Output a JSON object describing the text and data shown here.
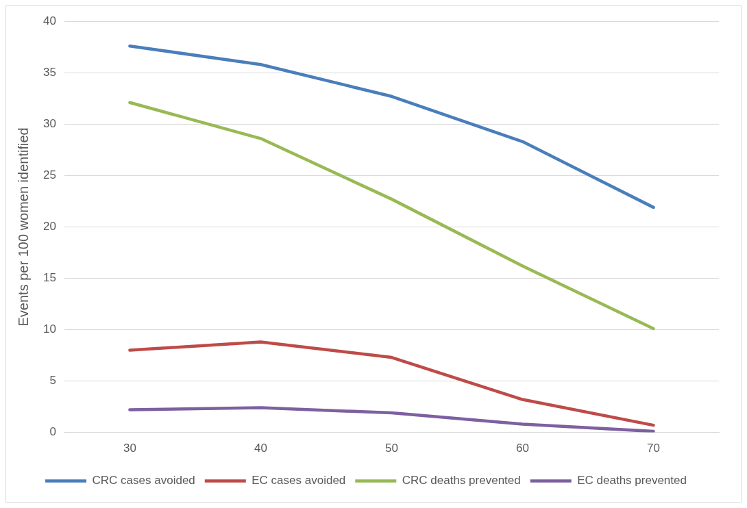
{
  "chart_data": {
    "type": "line",
    "ylabel": "Events per 100 women identified",
    "categories": [
      "30",
      "40",
      "50",
      "60",
      "70"
    ],
    "series": [
      {
        "name": "CRC cases avoided",
        "color": "#4a7ebb",
        "values": [
          37.6,
          35.8,
          32.7,
          28.3,
          21.9
        ]
      },
      {
        "name": "EC cases avoided",
        "color": "#be4b48",
        "values": [
          8.0,
          8.8,
          7.3,
          3.2,
          0.7
        ]
      },
      {
        "name": "CRC deaths prevented",
        "color": "#98b954",
        "values": [
          32.1,
          28.6,
          22.7,
          16.2,
          10.1
        ]
      },
      {
        "name": "EC deaths prevented",
        "color": "#7d60a0",
        "values": [
          2.2,
          2.4,
          1.9,
          0.8,
          0.1
        ]
      }
    ],
    "ylim": [
      0,
      40
    ],
    "yticks": [
      0,
      5,
      10,
      15,
      20,
      25,
      30,
      35,
      40
    ],
    "grid": "y",
    "legend": "bottom",
    "marker": "none",
    "line_style": "solid"
  }
}
